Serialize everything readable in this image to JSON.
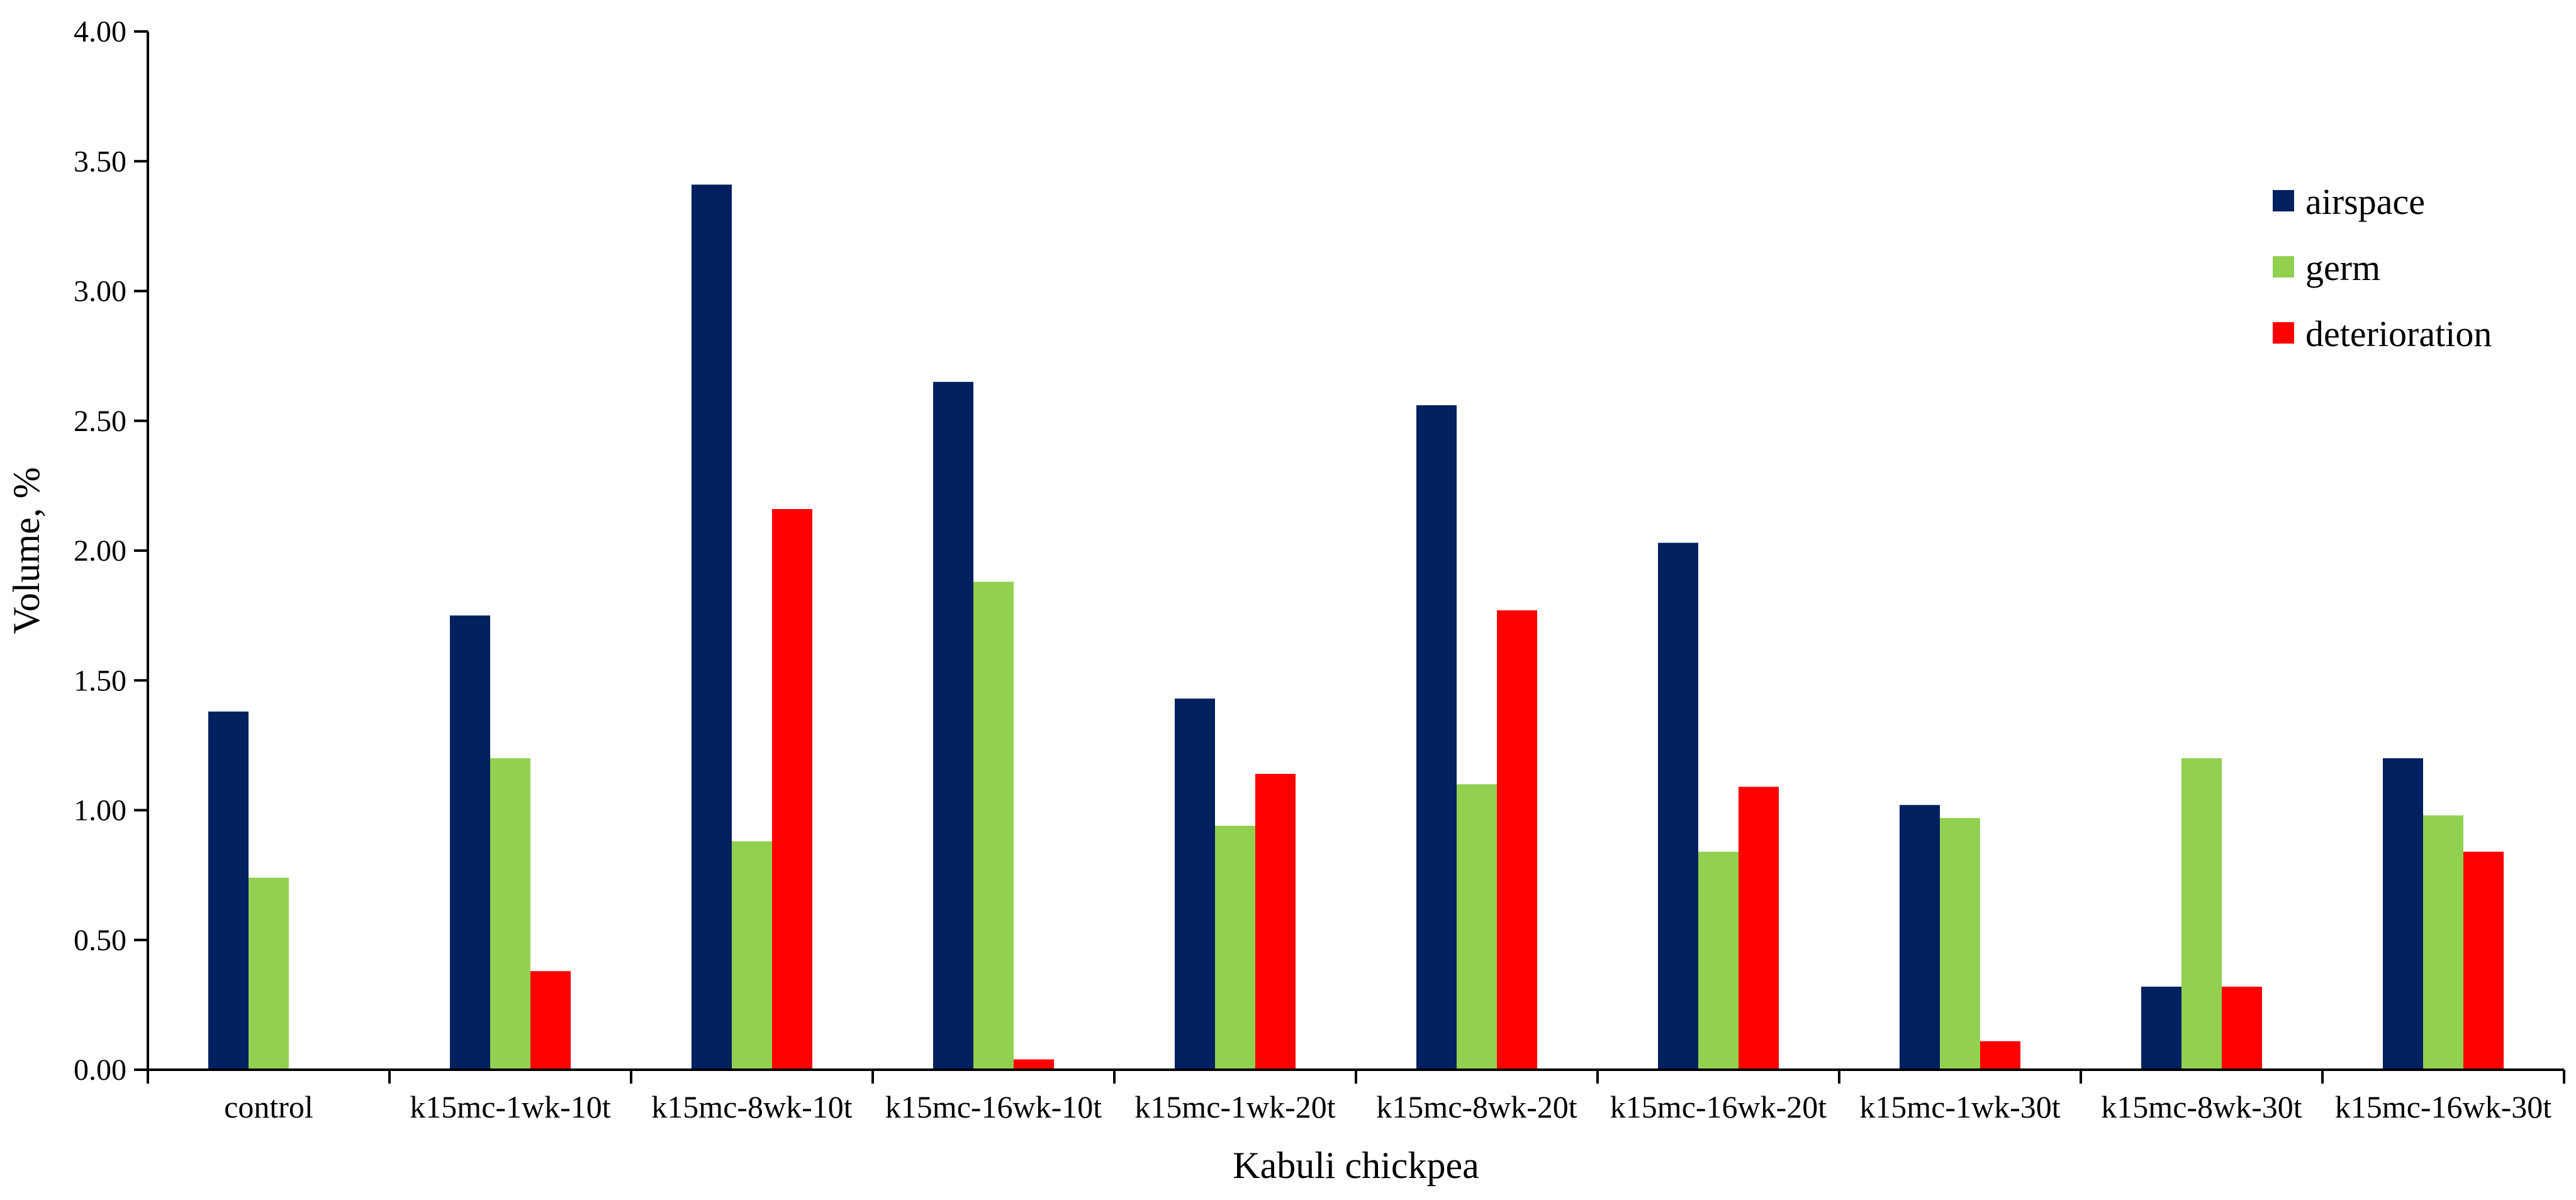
{
  "chart_data": {
    "type": "bar",
    "xlabel": "Kabuli chickpea",
    "ylabel": "Volume, %",
    "ylim": [
      0,
      4
    ],
    "ytick_step": 0.5,
    "ytick_labels": [
      "0.00",
      "0.50",
      "1.00",
      "1.50",
      "2.00",
      "2.50",
      "3.00",
      "3.50",
      "4.00"
    ],
    "grid": false,
    "legend_position": "top-right",
    "categories": [
      "control",
      "k15mc-1wk-10t",
      "k15mc-8wk-10t",
      "k15mc-16wk-10t",
      "k15mc-1wk-20t",
      "k15mc-8wk-20t",
      "k15mc-16wk-20t",
      "k15mc-1wk-30t",
      "k15mc-8wk-30t",
      "k15mc-16wk-30t"
    ],
    "series": [
      {
        "name": "airspace",
        "color": "#002060",
        "values": [
          1.38,
          1.75,
          3.41,
          2.65,
          1.43,
          2.56,
          2.03,
          1.02,
          0.32,
          1.2
        ]
      },
      {
        "name": "germ",
        "color": "#92D050",
        "values": [
          0.74,
          1.2,
          0.88,
          1.88,
          0.94,
          1.1,
          0.84,
          0.97,
          1.2,
          0.98
        ]
      },
      {
        "name": "deterioration",
        "color": "#FF0000",
        "values": [
          0.0,
          0.38,
          2.16,
          0.04,
          1.14,
          1.77,
          1.09,
          0.11,
          0.32,
          0.84
        ]
      }
    ]
  }
}
